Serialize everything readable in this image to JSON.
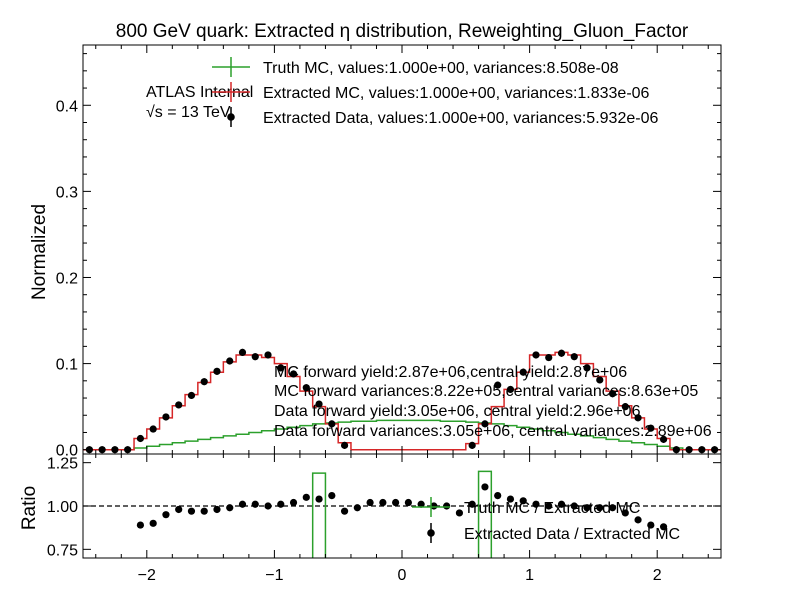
{
  "chart_data": [
    {
      "type": "line",
      "title": "800 GeV quark: Extracted η distribution, Reweighting_Gluon_Factor",
      "ylabel": "Normalized",
      "xlim": [
        -2.5,
        2.5
      ],
      "ylim": [
        -0.005,
        0.47
      ],
      "yticks": [
        0.0,
        0.1,
        0.2,
        0.3,
        0.4
      ],
      "ytick_labels": [
        "0.0",
        "0.1",
        "0.2",
        "0.3",
        "0.4"
      ],
      "xticks": [
        -2,
        -1,
        0,
        1,
        2
      ],
      "atlas_label": "ATLAS Internal",
      "energy_label": "√s =  13 TeV",
      "legend": [
        "Truth MC, values:1.000e+00, variances:8.508e-08",
        "Extracted MC, values:1.000e+00, variances:1.833e-06",
        "Extracted Data, values:1.000e+00, variances:5.932e-06"
      ],
      "annotations": [
        "MC forward yield:2.87e+06,central yield:2.87e+06",
        "MC forward variances:8.22e+05,central variances:8.63e+05",
        "Data forward yield:3.05e+06, central yield:2.96e+06",
        "Data forward variances:3.05e+06, central variances:2.89e+06"
      ],
      "bin_edges": [
        -2.5,
        -2.4,
        -2.3,
        -2.2,
        -2.1,
        -2.0,
        -1.9,
        -1.8,
        -1.7,
        -1.6,
        -1.5,
        -1.4,
        -1.3,
        -1.2,
        -1.1,
        -1.0,
        -0.9,
        -0.8,
        -0.7,
        -0.6,
        -0.5,
        -0.4,
        -0.3,
        -0.2,
        -0.1,
        0.0,
        0.1,
        0.2,
        0.3,
        0.4,
        0.5,
        0.6,
        0.7,
        0.8,
        0.9,
        1.0,
        1.1,
        1.2,
        1.3,
        1.4,
        1.5,
        1.6,
        1.7,
        1.8,
        1.9,
        2.0,
        2.1,
        2.2,
        2.3,
        2.4,
        2.5
      ],
      "series": [
        {
          "name": "Truth MC",
          "color": "#2ca02c",
          "values": [
            0,
            0,
            0,
            0,
            0.002,
            0.004,
            0.006,
            0.008,
            0.01,
            0.012,
            0.014,
            0.016,
            0.018,
            0.02,
            0.022,
            0.024,
            0.026,
            0.028,
            0.03,
            0.031,
            0.032,
            0.033,
            0.033,
            0.034,
            0.034,
            0.034,
            0.034,
            0.034,
            0.033,
            0.033,
            0.032,
            0.031,
            0.03,
            0.028,
            0.026,
            0.024,
            0.022,
            0.02,
            0.018,
            0.016,
            0.014,
            0.012,
            0.01,
            0.008,
            0.006,
            0.004,
            0.002,
            0,
            0,
            0
          ]
        },
        {
          "name": "Extracted MC",
          "color": "#d62728",
          "values": [
            0,
            0,
            0,
            0,
            0.013,
            0.024,
            0.037,
            0.051,
            0.064,
            0.078,
            0.09,
            0.102,
            0.11,
            0.11,
            0.107,
            0.1,
            0.085,
            0.068,
            0.05,
            0.03,
            0.008,
            0,
            0,
            0,
            0,
            0,
            0,
            0,
            0,
            0,
            0.007,
            0.03,
            0.05,
            0.07,
            0.09,
            0.11,
            0.11,
            0.113,
            0.11,
            0.1,
            0.085,
            0.068,
            0.051,
            0.037,
            0.024,
            0.013,
            0,
            0,
            0,
            0
          ]
        },
        {
          "name": "Extracted Data",
          "color": "#000000",
          "values": [
            0,
            0,
            0,
            0,
            0.013,
            0.024,
            0.038,
            0.052,
            0.063,
            0.079,
            0.091,
            0.103,
            0.113,
            0.108,
            0.11,
            0.095,
            0.088,
            0.072,
            0.053,
            0.03,
            0.005,
            null,
            null,
            null,
            null,
            null,
            null,
            null,
            null,
            null,
            0.005,
            0.03,
            0.075,
            0.07,
            0.09,
            0.11,
            0.107,
            0.112,
            0.108,
            0.095,
            0.081,
            0.065,
            0.05,
            0.037,
            0.025,
            0.012,
            0,
            0,
            0,
            0
          ]
        }
      ]
    },
    {
      "type": "line",
      "ylabel": "Ratio",
      "xlim": [
        -2.5,
        2.5
      ],
      "ylim": [
        0.7,
        1.3
      ],
      "yticks": [
        0.75,
        1.0,
        1.25
      ],
      "ytick_labels": [
        "0.75",
        "1.00",
        "1.25"
      ],
      "xticks": [
        -2,
        -1,
        0,
        1,
        2
      ],
      "xtick_labels": [
        "−2",
        "−1",
        "0",
        "1",
        "2"
      ],
      "reference_line": 1.0,
      "legend": [
        "Truth MC / Extracted MC",
        "Extracted Data / Extracted MC"
      ],
      "series": [
        {
          "name": "Truth MC / Extracted MC",
          "color": "#2ca02c",
          "bars": [
            {
              "x0": -0.7,
              "x1": -0.6,
              "low": 0.7,
              "high": 1.19
            },
            {
              "x0": 0.6,
              "x1": 0.7,
              "low": 0.7,
              "high": 1.2
            }
          ]
        },
        {
          "name": "Extracted Data / Extracted MC",
          "color": "#000000",
          "points": [
            [
              -2.05,
              0.89
            ],
            [
              -1.95,
              0.9
            ],
            [
              -1.85,
              0.95
            ],
            [
              -1.75,
              0.98
            ],
            [
              -1.65,
              0.97
            ],
            [
              -1.55,
              0.97
            ],
            [
              -1.45,
              0.98
            ],
            [
              -1.35,
              0.99
            ],
            [
              -1.25,
              1.01
            ],
            [
              -1.15,
              1.01
            ],
            [
              -1.05,
              1.0
            ],
            [
              -0.95,
              1.01
            ],
            [
              -0.85,
              1.02
            ],
            [
              -0.75,
              1.05
            ],
            [
              -0.65,
              1.04
            ],
            [
              -0.55,
              1.06
            ],
            [
              -0.45,
              0.97
            ],
            [
              -0.35,
              0.99
            ],
            [
              -0.25,
              1.02
            ],
            [
              -0.15,
              1.02
            ],
            [
              -0.05,
              1.02
            ],
            [
              0.05,
              1.02
            ],
            [
              0.15,
              1.01
            ],
            [
              0.25,
              1.0
            ],
            [
              0.35,
              1.0
            ],
            [
              0.45,
              0.96
            ],
            [
              0.55,
              1.01
            ],
            [
              0.65,
              1.11
            ],
            [
              0.75,
              1.06
            ],
            [
              0.85,
              1.04
            ],
            [
              0.95,
              1.03
            ],
            [
              1.05,
              1.01
            ],
            [
              1.15,
              1.0
            ],
            [
              1.25,
              1.01
            ],
            [
              1.35,
              1.0
            ],
            [
              1.45,
              0.99
            ],
            [
              1.55,
              0.99
            ],
            [
              1.65,
              0.99
            ],
            [
              1.75,
              0.96
            ],
            [
              1.85,
              0.92
            ],
            [
              1.95,
              0.89
            ],
            [
              2.05,
              0.88
            ]
          ]
        }
      ]
    }
  ]
}
